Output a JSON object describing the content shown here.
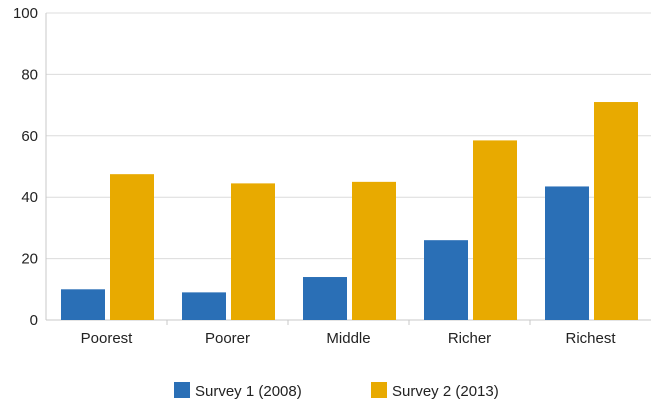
{
  "chart_data": {
    "type": "bar",
    "title": "",
    "xlabel": "",
    "ylabel": "",
    "ylim": [
      0,
      100
    ],
    "yticks": [
      0,
      20,
      40,
      60,
      80,
      100
    ],
    "grid": true,
    "legend_position": "bottom",
    "categories": [
      "Poorest",
      "Poorer",
      "Middle",
      "Richer",
      "Richest"
    ],
    "series": [
      {
        "name": "Survey 1 (2008)",
        "color": "#2a6fb6",
        "values": [
          10,
          9,
          14,
          26,
          43.5
        ]
      },
      {
        "name": "Survey 2 (2013)",
        "color": "#e8aa00",
        "values": [
          47.5,
          44.5,
          45,
          58.5,
          71
        ]
      }
    ]
  }
}
